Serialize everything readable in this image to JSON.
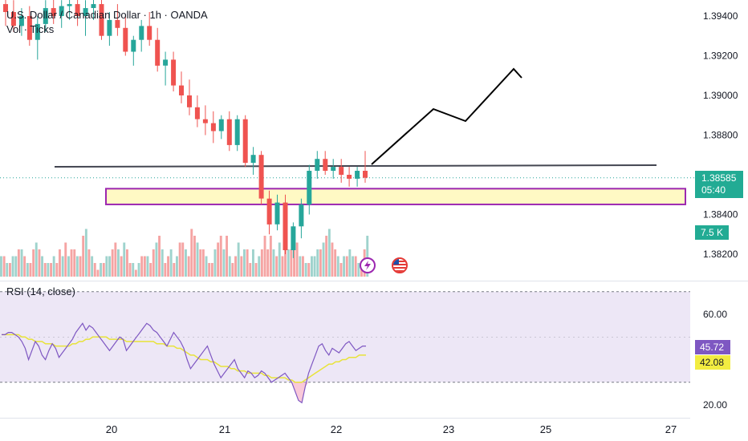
{
  "legend": {
    "title": "U.S. Dollar / Canadian Dollar · 1h · OANDA",
    "volume": "Vol · Ticks",
    "rsi": "RSI (14, close)"
  },
  "badges": {
    "last_price": "1.38585",
    "countdown": "05:40",
    "volume": "7.5 K",
    "rsi_value": "45.72",
    "rsi_ma_value": "42.08"
  },
  "colors": {
    "up": "#26a69a",
    "down": "#ef5350",
    "volume_up": "#9fd3cd",
    "volume_down": "#f5a4a3",
    "zone_fill": "#fff9c4",
    "zone_border": "#9c27b0",
    "rsi_line": "#7e57c2",
    "rsi_ma": "#e8e33a",
    "rsi_band": "#ede7f6"
  },
  "icons": [
    "lightning-event-icon",
    "us-flag-event-icon"
  ],
  "chart_data": [
    {
      "type": "candlestick",
      "title": "U.S. Dollar / Canadian Dollar · 1h · OANDA",
      "y_ticks": [
        "1.39400",
        "1.39200",
        "1.39000",
        "1.38800",
        "1.38400",
        "1.38200"
      ],
      "x_ticks": [
        "20",
        "21",
        "22",
        "23",
        "25",
        "27"
      ],
      "last_price": 1.38585,
      "ylim": [
        1.3812,
        1.395
      ],
      "candles": [
        [
          1.3946,
          1.395,
          1.3935,
          1.3942
        ],
        [
          1.3942,
          1.3948,
          1.3932,
          1.3935
        ],
        [
          1.3935,
          1.3944,
          1.393,
          1.394
        ],
        [
          1.394,
          1.3945,
          1.3925,
          1.3928
        ],
        [
          1.3928,
          1.394,
          1.3918,
          1.3936
        ],
        [
          1.3936,
          1.3948,
          1.3932,
          1.3944
        ],
        [
          1.3944,
          1.395,
          1.3936,
          1.394
        ],
        [
          1.394,
          1.3948,
          1.3934,
          1.3945
        ],
        [
          1.3945,
          1.395,
          1.3938,
          1.3946
        ],
        [
          1.3946,
          1.395,
          1.3935,
          1.394
        ],
        [
          1.394,
          1.3948,
          1.393,
          1.3944
        ],
        [
          1.3944,
          1.395,
          1.3938,
          1.3946
        ],
        [
          1.3946,
          1.395,
          1.3928,
          1.393
        ],
        [
          1.393,
          1.3942,
          1.3925,
          1.3938
        ],
        [
          1.3938,
          1.3946,
          1.393,
          1.3934
        ],
        [
          1.3934,
          1.394,
          1.392,
          1.3922
        ],
        [
          1.3922,
          1.393,
          1.3915,
          1.3928
        ],
        [
          1.3928,
          1.3938,
          1.3922,
          1.3935
        ],
        [
          1.3935,
          1.3942,
          1.3925,
          1.3928
        ],
        [
          1.3928,
          1.3934,
          1.3912,
          1.3915
        ],
        [
          1.3915,
          1.3922,
          1.3905,
          1.3918
        ],
        [
          1.3918,
          1.3922,
          1.3902,
          1.3905
        ],
        [
          1.3905,
          1.3912,
          1.3896,
          1.39
        ],
        [
          1.39,
          1.3908,
          1.389,
          1.3894
        ],
        [
          1.3894,
          1.39,
          1.3884,
          1.3888
        ],
        [
          1.3888,
          1.3895,
          1.388,
          1.3886
        ],
        [
          1.3886,
          1.3892,
          1.3876,
          1.3882
        ],
        [
          1.3882,
          1.389,
          1.3878,
          1.3888
        ],
        [
          1.3888,
          1.3892,
          1.3872,
          1.3875
        ],
        [
          1.3875,
          1.389,
          1.3872,
          1.3888
        ],
        [
          1.3888,
          1.389,
          1.3864,
          1.3866
        ],
        [
          1.3866,
          1.3874,
          1.386,
          1.387
        ],
        [
          1.387,
          1.3872,
          1.3845,
          1.3848
        ],
        [
          1.3848,
          1.3852,
          1.383,
          1.3835
        ],
        [
          1.3835,
          1.385,
          1.3832,
          1.3846
        ],
        [
          1.3846,
          1.385,
          1.382,
          1.3822
        ],
        [
          1.3822,
          1.3836,
          1.3818,
          1.3834
        ],
        [
          1.3834,
          1.3848,
          1.3828,
          1.3845
        ],
        [
          1.3845,
          1.3865,
          1.384,
          1.3862
        ],
        [
          1.3862,
          1.3872,
          1.3858,
          1.3868
        ],
        [
          1.3868,
          1.3872,
          1.386,
          1.3862
        ],
        [
          1.3862,
          1.3868,
          1.3858,
          1.3864
        ],
        [
          1.3864,
          1.3868,
          1.3856,
          1.386
        ],
        [
          1.386,
          1.3864,
          1.3854,
          1.3858
        ],
        [
          1.3858,
          1.3864,
          1.3854,
          1.3862
        ],
        [
          1.3862,
          1.3872,
          1.3856,
          1.38585
        ]
      ]
    },
    {
      "type": "bar",
      "title": "Vol · Ticks",
      "values": [
        3,
        3,
        2,
        2,
        3,
        3,
        4,
        4,
        3,
        2,
        2,
        4,
        5,
        4,
        3,
        2,
        2,
        2,
        3,
        2,
        4,
        3,
        5,
        3,
        4,
        4,
        3,
        3,
        6,
        7,
        4,
        3,
        2,
        1,
        2,
        2,
        3,
        3,
        4,
        5,
        4,
        3,
        5,
        4,
        2,
        2,
        1,
        2,
        3,
        3,
        3,
        2,
        4,
        5,
        6,
        4,
        2,
        3,
        4,
        2,
        3,
        5,
        5,
        4,
        3,
        7,
        6,
        5,
        4,
        4,
        3,
        2,
        2,
        4,
        5,
        6,
        4,
        6,
        3,
        2,
        3,
        5,
        3,
        4,
        4,
        2,
        4,
        2,
        3,
        4,
        6,
        4,
        6,
        4,
        3,
        5,
        3,
        4,
        4,
        4,
        6,
        5,
        3,
        3,
        2,
        2,
        3,
        3,
        4,
        4,
        5,
        6,
        7,
        5,
        4,
        3,
        2,
        3,
        3,
        4,
        3,
        3,
        2,
        2,
        4,
        6
      ],
      "up": [
        true,
        false,
        true,
        false,
        true,
        true,
        false,
        true,
        false,
        true,
        false,
        false,
        true,
        false,
        true,
        false,
        true,
        false,
        true,
        false,
        false,
        true,
        false,
        true,
        false,
        false,
        true,
        false,
        false,
        true,
        false,
        true,
        false,
        false,
        true,
        false,
        true,
        true,
        false,
        false,
        true,
        false,
        true,
        false,
        false,
        true,
        false,
        true,
        false,
        false,
        true,
        false,
        false,
        true,
        false,
        true,
        false,
        false,
        true,
        false,
        true,
        false,
        false,
        true,
        false,
        false,
        false,
        true,
        false,
        false,
        true,
        false,
        false,
        true,
        false,
        false,
        true,
        false,
        true,
        false,
        false,
        true,
        false,
        true,
        false,
        false,
        true,
        false,
        true,
        false,
        false,
        false,
        false,
        true,
        false,
        true,
        false,
        false,
        true,
        false,
        false,
        false,
        true,
        false,
        true,
        false,
        true,
        true,
        true,
        false,
        true,
        false,
        true,
        false,
        false,
        true,
        false,
        true,
        false,
        true,
        true,
        false,
        true,
        false,
        false,
        true
      ]
    },
    {
      "type": "line",
      "title": "RSI (14, close)",
      "y_ticks": [
        "60.00",
        "20.00"
      ],
      "ylim": [
        18,
        76
      ],
      "bands": [
        70,
        30
      ],
      "series": [
        {
          "values": [
            51,
            51,
            52,
            52,
            51,
            50,
            48,
            45,
            40,
            44,
            48,
            46,
            42,
            40,
            44,
            47,
            45,
            41,
            43,
            45,
            47,
            49,
            52,
            54,
            56,
            53,
            55,
            54,
            52,
            50,
            48,
            46,
            44,
            46,
            48,
            50,
            49,
            44,
            46,
            48,
            50,
            52,
            54,
            56,
            55,
            53,
            52,
            50,
            48,
            46,
            49,
            52,
            50,
            48,
            45,
            40,
            36,
            38,
            40,
            42,
            44,
            46,
            42,
            38,
            35,
            32,
            34,
            36,
            38,
            40,
            36,
            34,
            32,
            35,
            34,
            32,
            33,
            35,
            34,
            32,
            30,
            31,
            32,
            33,
            34,
            32,
            30,
            26,
            22,
            21,
            28,
            34,
            38,
            42,
            46,
            47,
            44,
            42,
            45,
            44,
            43,
            45,
            47,
            48,
            46,
            44,
            45,
            46,
            46
          ]
        },
        {
          "values": [
            51,
            51,
            51,
            51,
            51,
            51,
            50,
            50,
            49,
            49,
            48,
            48,
            48,
            47,
            47,
            47,
            46,
            46,
            46,
            46,
            46,
            47,
            47,
            48,
            48,
            49,
            49,
            50,
            50,
            50,
            50,
            50,
            49,
            49,
            49,
            49,
            49,
            48,
            48,
            48,
            48,
            48,
            48,
            48,
            48,
            48,
            47,
            47,
            47,
            46,
            46,
            46,
            45,
            45,
            44,
            43,
            42,
            42,
            41,
            40,
            40,
            40,
            39,
            39,
            38,
            37,
            37,
            37,
            36,
            36,
            35,
            35,
            35,
            34,
            34,
            34,
            34,
            34,
            33,
            33,
            32,
            32,
            32,
            32,
            32,
            31,
            31,
            30,
            30,
            30,
            31,
            32,
            33,
            34,
            35,
            36,
            37,
            38,
            38,
            39,
            39,
            40,
            40,
            41,
            41,
            41,
            42,
            42,
            42
          ]
        }
      ]
    }
  ]
}
